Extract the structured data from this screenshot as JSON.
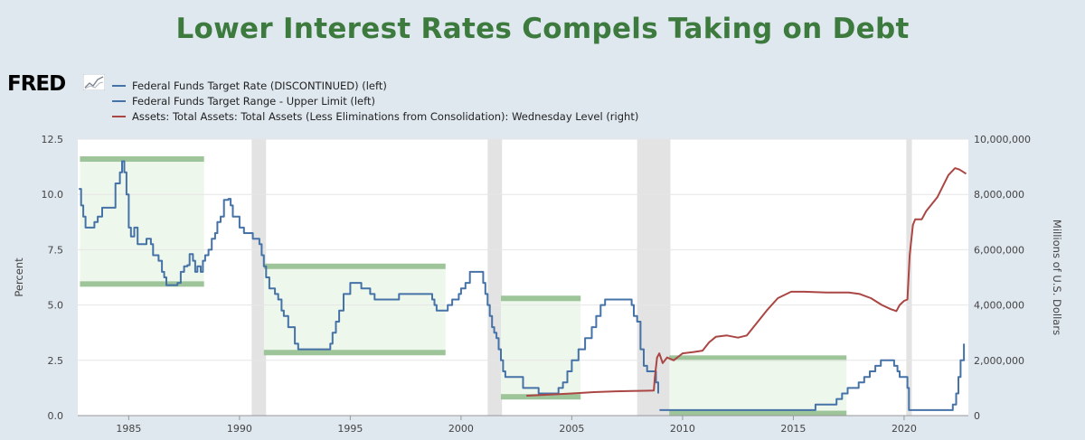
{
  "title": "Lower Interest Rates Compels Taking on Debt",
  "logo": {
    "text": "FRED"
  },
  "chart_data": {
    "type": "line",
    "title": "Lower Interest Rates Compels Taking on Debt",
    "ylabel_left": "Percent",
    "ylabel_right": "Millions of U.S. Dollars",
    "xlim": [
      1982.7,
      2022.9
    ],
    "ylim_left": [
      0,
      12.5
    ],
    "ylim_right": [
      0,
      10000000
    ],
    "x_ticks": [
      "1985",
      "1990",
      "1995",
      "2000",
      "2005",
      "2010",
      "2015",
      "2020"
    ],
    "y_ticks_left": [
      "0.0",
      "2.5",
      "5.0",
      "7.5",
      "10.0",
      "12.5"
    ],
    "y_ticks_right": [
      "0",
      "2,000,000",
      "4,000,000",
      "6,000,000",
      "8,000,000",
      "10,000,000"
    ],
    "grid": true,
    "legend_position": "top-left",
    "recessions": [
      [
        1990.55,
        1991.2
      ],
      [
        2001.2,
        2001.85
      ],
      [
        2007.95,
        2009.45
      ],
      [
        2020.1,
        2020.35
      ]
    ],
    "annotation_bands": [
      {
        "x": [
          1982.8,
          1988.4
        ],
        "y": [
          5.95,
          11.6
        ]
      },
      {
        "x": [
          1991.1,
          1999.3
        ],
        "y": [
          2.85,
          6.75
        ]
      },
      {
        "x": [
          2001.8,
          2005.4
        ],
        "y": [
          0.85,
          5.3
        ]
      },
      {
        "x": [
          2009.4,
          2017.4
        ],
        "y": [
          0.1,
          2.6
        ]
      }
    ],
    "series": [
      {
        "name": "Federal Funds Target Rate (DISCONTINUED) (left)",
        "axis": "left",
        "color": "#4572a7",
        "points": [
          [
            1982.75,
            10.25
          ],
          [
            1982.85,
            9.5
          ],
          [
            1982.95,
            9.0
          ],
          [
            1983.05,
            8.5
          ],
          [
            1983.3,
            8.5
          ],
          [
            1983.45,
            8.75
          ],
          [
            1983.6,
            9.0
          ],
          [
            1983.8,
            9.4
          ],
          [
            1984.0,
            9.4
          ],
          [
            1984.3,
            9.4
          ],
          [
            1984.4,
            10.5
          ],
          [
            1984.55,
            10.5
          ],
          [
            1984.6,
            11.0
          ],
          [
            1984.7,
            11.5
          ],
          [
            1984.8,
            11.0
          ],
          [
            1984.9,
            10.0
          ],
          [
            1985.0,
            8.5
          ],
          [
            1985.1,
            8.1
          ],
          [
            1985.25,
            8.5
          ],
          [
            1985.4,
            7.75
          ],
          [
            1985.6,
            7.75
          ],
          [
            1985.8,
            8.0
          ],
          [
            1986.0,
            7.75
          ],
          [
            1986.1,
            7.25
          ],
          [
            1986.35,
            7.0
          ],
          [
            1986.5,
            6.5
          ],
          [
            1986.6,
            6.25
          ],
          [
            1986.7,
            5.9
          ],
          [
            1987.0,
            5.9
          ],
          [
            1987.2,
            6.0
          ],
          [
            1987.35,
            6.5
          ],
          [
            1987.5,
            6.75
          ],
          [
            1987.65,
            6.8
          ],
          [
            1987.75,
            7.3
          ],
          [
            1987.9,
            7.0
          ],
          [
            1988.0,
            6.5
          ],
          [
            1988.1,
            6.75
          ],
          [
            1988.25,
            6.5
          ],
          [
            1988.35,
            7.0
          ],
          [
            1988.45,
            7.25
          ],
          [
            1988.6,
            7.5
          ],
          [
            1988.75,
            8.0
          ],
          [
            1988.9,
            8.25
          ],
          [
            1989.0,
            8.75
          ],
          [
            1989.15,
            9.0
          ],
          [
            1989.3,
            9.75
          ],
          [
            1989.5,
            9.8
          ],
          [
            1989.6,
            9.5
          ],
          [
            1989.7,
            9.0
          ],
          [
            1989.85,
            9.0
          ],
          [
            1990.0,
            8.5
          ],
          [
            1990.2,
            8.25
          ],
          [
            1990.5,
            8.25
          ],
          [
            1990.6,
            8.0
          ],
          [
            1990.8,
            8.0
          ],
          [
            1990.9,
            7.75
          ],
          [
            1991.0,
            7.25
          ],
          [
            1991.1,
            6.75
          ],
          [
            1991.2,
            6.25
          ],
          [
            1991.35,
            5.75
          ],
          [
            1991.6,
            5.5
          ],
          [
            1991.75,
            5.25
          ],
          [
            1991.9,
            4.75
          ],
          [
            1992.0,
            4.5
          ],
          [
            1992.2,
            4.0
          ],
          [
            1992.5,
            3.25
          ],
          [
            1992.65,
            3.0
          ],
          [
            1993.0,
            3.0
          ],
          [
            1994.1,
            3.25
          ],
          [
            1994.2,
            3.75
          ],
          [
            1994.35,
            4.25
          ],
          [
            1994.5,
            4.75
          ],
          [
            1994.7,
            5.5
          ],
          [
            1995.0,
            6.0
          ],
          [
            1995.5,
            5.75
          ],
          [
            1995.9,
            5.5
          ],
          [
            1996.1,
            5.25
          ],
          [
            1997.2,
            5.5
          ],
          [
            1998.7,
            5.25
          ],
          [
            1998.8,
            5.0
          ],
          [
            1998.9,
            4.75
          ],
          [
            1999.4,
            5.0
          ],
          [
            1999.6,
            5.25
          ],
          [
            1999.9,
            5.5
          ],
          [
            2000.0,
            5.75
          ],
          [
            2000.2,
            6.0
          ],
          [
            2000.4,
            6.5
          ],
          [
            2001.0,
            6.0
          ],
          [
            2001.1,
            5.5
          ],
          [
            2001.2,
            5.0
          ],
          [
            2001.3,
            4.5
          ],
          [
            2001.4,
            4.0
          ],
          [
            2001.5,
            3.75
          ],
          [
            2001.6,
            3.5
          ],
          [
            2001.7,
            3.0
          ],
          [
            2001.8,
            2.5
          ],
          [
            2001.9,
            2.0
          ],
          [
            2002.0,
            1.75
          ],
          [
            2002.8,
            1.25
          ],
          [
            2003.5,
            1.0
          ],
          [
            2004.4,
            1.25
          ],
          [
            2004.6,
            1.5
          ],
          [
            2004.8,
            2.0
          ],
          [
            2005.0,
            2.5
          ],
          [
            2005.3,
            3.0
          ],
          [
            2005.6,
            3.5
          ],
          [
            2005.9,
            4.0
          ],
          [
            2006.1,
            4.5
          ],
          [
            2006.3,
            5.0
          ],
          [
            2006.5,
            5.25
          ],
          [
            2007.7,
            5.0
          ],
          [
            2007.8,
            4.5
          ],
          [
            2007.95,
            4.25
          ],
          [
            2008.1,
            3.0
          ],
          [
            2008.25,
            2.25
          ],
          [
            2008.4,
            2.0
          ],
          [
            2008.8,
            1.5
          ],
          [
            2008.9,
            1.0
          ]
        ]
      },
      {
        "name": "Federal Funds Target Range - Upper Limit (left)",
        "axis": "left",
        "color": "#4572a7",
        "points": [
          [
            2008.96,
            0.25
          ],
          [
            2015.95,
            0.25
          ],
          [
            2016.0,
            0.5
          ],
          [
            2016.95,
            0.75
          ],
          [
            2017.2,
            1.0
          ],
          [
            2017.45,
            1.25
          ],
          [
            2017.95,
            1.5
          ],
          [
            2018.2,
            1.75
          ],
          [
            2018.45,
            2.0
          ],
          [
            2018.7,
            2.25
          ],
          [
            2018.95,
            2.5
          ],
          [
            2019.55,
            2.25
          ],
          [
            2019.7,
            2.0
          ],
          [
            2019.8,
            1.75
          ],
          [
            2020.15,
            1.25
          ],
          [
            2020.22,
            0.25
          ],
          [
            2022.2,
            0.5
          ],
          [
            2022.35,
            1.0
          ],
          [
            2022.45,
            1.75
          ],
          [
            2022.55,
            2.5
          ],
          [
            2022.7,
            3.25
          ]
        ]
      },
      {
        "name": "Assets: Total Assets: Total Assets (Less Eliminations from Consolidation): Wednesday Level (right)",
        "axis": "right",
        "color": "#aa4643",
        "points": [
          [
            2002.95,
            720000
          ],
          [
            2004.0,
            760000
          ],
          [
            2005.0,
            800000
          ],
          [
            2006.0,
            850000
          ],
          [
            2007.0,
            880000
          ],
          [
            2007.7,
            890000
          ],
          [
            2008.3,
            900000
          ],
          [
            2008.7,
            905000
          ],
          [
            2008.75,
            1400000
          ],
          [
            2008.85,
            2100000
          ],
          [
            2008.95,
            2250000
          ],
          [
            2009.1,
            1900000
          ],
          [
            2009.3,
            2100000
          ],
          [
            2009.6,
            2000000
          ],
          [
            2010.0,
            2250000
          ],
          [
            2010.5,
            2300000
          ],
          [
            2010.9,
            2350000
          ],
          [
            2011.2,
            2650000
          ],
          [
            2011.5,
            2850000
          ],
          [
            2012.0,
            2900000
          ],
          [
            2012.5,
            2820000
          ],
          [
            2012.9,
            2900000
          ],
          [
            2013.3,
            3300000
          ],
          [
            2013.8,
            3800000
          ],
          [
            2014.3,
            4250000
          ],
          [
            2014.9,
            4480000
          ],
          [
            2015.5,
            4480000
          ],
          [
            2016.5,
            4450000
          ],
          [
            2017.5,
            4450000
          ],
          [
            2018.0,
            4400000
          ],
          [
            2018.5,
            4250000
          ],
          [
            2019.0,
            4000000
          ],
          [
            2019.4,
            3850000
          ],
          [
            2019.65,
            3780000
          ],
          [
            2019.8,
            4000000
          ],
          [
            2020.0,
            4150000
          ],
          [
            2020.15,
            4200000
          ],
          [
            2020.25,
            5800000
          ],
          [
            2020.4,
            6900000
          ],
          [
            2020.5,
            7100000
          ],
          [
            2020.8,
            7100000
          ],
          [
            2021.0,
            7400000
          ],
          [
            2021.5,
            7900000
          ],
          [
            2022.0,
            8700000
          ],
          [
            2022.3,
            8950000
          ],
          [
            2022.5,
            8900000
          ],
          [
            2022.8,
            8750000
          ]
        ]
      }
    ]
  }
}
